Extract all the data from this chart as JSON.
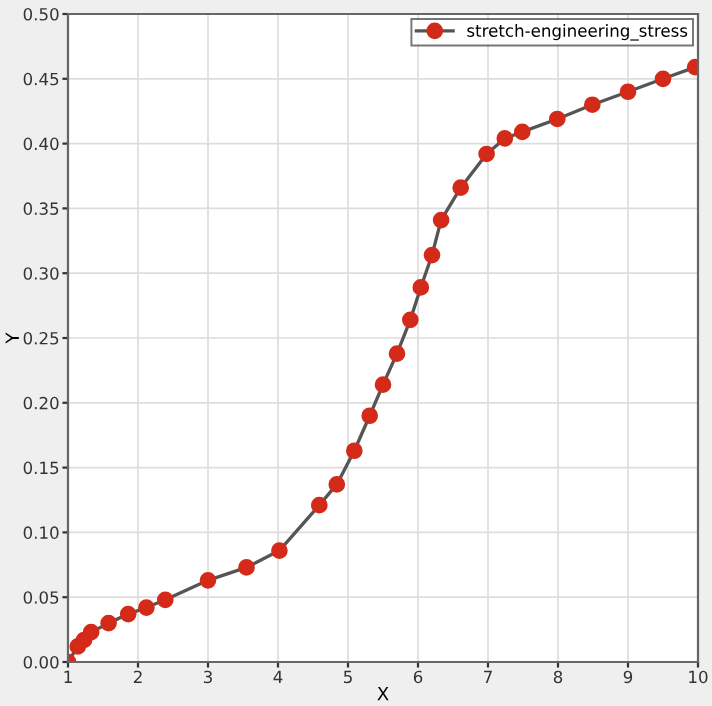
{
  "chart_data": {
    "type": "line",
    "xlabel": "X",
    "ylabel": "Y",
    "series": [
      {
        "name": "stretch-engineering_stress",
        "color": "#d42a1a",
        "x": [
          1,
          1.14,
          1.23,
          1.33,
          1.58,
          1.86,
          2.12,
          2.39,
          3.0,
          3.55,
          4.02,
          4.59,
          4.84,
          5.09,
          5.31,
          5.5,
          5.7,
          5.89,
          6.04,
          6.2,
          6.33,
          6.61,
          6.98,
          7.24,
          7.49,
          7.99,
          8.49,
          9.0,
          9.5,
          9.96
        ],
        "values": [
          0,
          0.012,
          0.017,
          0.023,
          0.03,
          0.037,
          0.042,
          0.048,
          0.063,
          0.073,
          0.086,
          0.121,
          0.137,
          0.163,
          0.19,
          0.214,
          0.238,
          0.264,
          0.289,
          0.314,
          0.341,
          0.366,
          0.392,
          0.404,
          0.409,
          0.419,
          0.43,
          0.44,
          0.45,
          0.459
        ]
      }
    ],
    "xlim": [
      1,
      10
    ],
    "ylim": [
      0,
      0.5
    ],
    "xticks": [
      1,
      2,
      3,
      4,
      5,
      6,
      7,
      8,
      9,
      10
    ],
    "yticks": [
      {
        "value": 0,
        "label": "0.00"
      },
      {
        "value": 0.05,
        "label": "0.05"
      },
      {
        "value": 0.1,
        "label": "0.10"
      },
      {
        "value": 0.15,
        "label": "0.15"
      },
      {
        "value": 0.2,
        "label": "0.20"
      },
      {
        "value": 0.25,
        "label": "0.25"
      },
      {
        "value": 0.3,
        "label": "0.30"
      },
      {
        "value": 0.35,
        "label": "0.35"
      },
      {
        "value": 0.4,
        "label": "0.40"
      },
      {
        "value": 0.45,
        "label": "0.45"
      },
      {
        "value": 0.5,
        "label": "0.50"
      }
    ],
    "grid": true,
    "legend": "top right",
    "marker": "circle",
    "line_style": "solid"
  }
}
